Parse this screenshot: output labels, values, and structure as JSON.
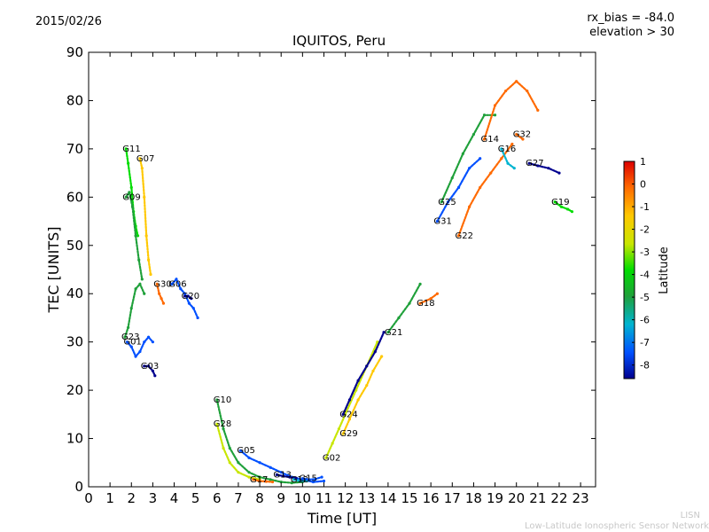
{
  "header": {
    "date": "2015/02/26",
    "rx_bias": "rx_bias = -84.0",
    "elevation": "elevation > 30",
    "title": "IQUITOS, Peru"
  },
  "footer": {
    "org_short": "LISN",
    "org_full": "Low-Latitude Ionospheric Sensor Network"
  },
  "colors": {
    "scale": [
      "#00008f",
      "#0050ff",
      "#00b4d0",
      "#1fa03a",
      "#00dd00",
      "#c8e600",
      "#ffc800",
      "#ff6a00",
      "#dd0000"
    ]
  },
  "chart_data": {
    "type": "scatter",
    "xlabel": "Time [UT]",
    "ylabel": "TEC [UNITS]",
    "xlim": [
      0,
      23.7
    ],
    "ylim": [
      0,
      90
    ],
    "xticks": [
      0,
      1,
      2,
      3,
      4,
      5,
      6,
      7,
      8,
      9,
      10,
      11,
      12,
      13,
      14,
      15,
      16,
      17,
      18,
      19,
      20,
      21,
      22,
      23
    ],
    "yticks": [
      0,
      10,
      20,
      30,
      40,
      50,
      60,
      70,
      80,
      90
    ],
    "colorbar": {
      "label": "Latitude",
      "range": [
        -8.6,
        1
      ],
      "ticks": [
        1,
        0,
        -1,
        -2,
        -3,
        -4,
        -5,
        -6,
        -7,
        -8
      ]
    },
    "series": [
      {
        "name": "G11",
        "lat": -3.5,
        "x": [
          1.75,
          1.85,
          2.0,
          2.1,
          2.2,
          2.3
        ],
        "y": [
          70,
          67,
          62,
          57,
          54,
          52
        ]
      },
      {
        "name": "G07",
        "lat": -1.5,
        "x": [
          2.4,
          2.5,
          2.6,
          2.7,
          2.8,
          2.9
        ],
        "y": [
          68,
          66,
          60,
          52,
          47,
          44
        ]
      },
      {
        "name": "G09",
        "lat": -4.5,
        "x": [
          1.75,
          1.9,
          2.05,
          2.2,
          2.35,
          2.5
        ],
        "y": [
          60,
          61,
          58,
          52,
          47,
          43
        ]
      },
      {
        "name": "G30",
        "lat": 0.3,
        "x": [
          3.2,
          3.3,
          3.4,
          3.5
        ],
        "y": [
          42,
          40,
          39,
          38
        ]
      },
      {
        "name": "G06",
        "lat": -7.0,
        "x": [
          3.9,
          4.1,
          4.3,
          4.5,
          4.7,
          4.9,
          5.1
        ],
        "y": [
          42,
          43,
          41,
          40,
          38,
          37,
          35
        ]
      },
      {
        "name": "G20",
        "lat": -8.3,
        "x": [
          4.5,
          4.65,
          4.8
        ],
        "y": [
          39.5,
          39.5,
          39
        ]
      },
      {
        "name": "G23",
        "lat": -5.5,
        "x": [
          1.7,
          1.85,
          2.0,
          2.2,
          2.4,
          2.6
        ],
        "y": [
          31,
          33,
          37,
          41,
          42,
          40
        ]
      },
      {
        "name": "G01",
        "lat": -7.5,
        "x": [
          1.8,
          2.0,
          2.2,
          2.4,
          2.6,
          2.8,
          3.0
        ],
        "y": [
          30,
          29,
          27,
          28,
          30,
          31,
          30
        ]
      },
      {
        "name": "G03",
        "lat": -8.4,
        "x": [
          2.6,
          2.8,
          3.0,
          3.1
        ],
        "y": [
          25,
          25,
          24,
          23
        ]
      },
      {
        "name": "G10",
        "lat": -5.0,
        "x": [
          6.0,
          6.3,
          6.6,
          7.0,
          7.5,
          8.0,
          8.5,
          9.0,
          9.5,
          10.0
        ],
        "y": [
          18,
          12,
          8,
          5,
          3,
          2,
          1.5,
          1,
          0.8,
          1
        ]
      },
      {
        "name": "G28",
        "lat": -2.5,
        "x": [
          6.0,
          6.3,
          6.6,
          7.0,
          7.5,
          8.0
        ],
        "y": [
          13,
          8,
          5,
          3,
          2,
          1.5
        ]
      },
      {
        "name": "G05",
        "lat": -7.0,
        "x": [
          7.1,
          7.5,
          8.0,
          8.5,
          9.0,
          9.5,
          10.0,
          10.5,
          11.0
        ],
        "y": [
          7.5,
          6,
          5,
          4,
          3,
          2,
          1.5,
          1,
          1.2
        ]
      },
      {
        "name": "G17",
        "lat": 0.2,
        "x": [
          7.7,
          8.0,
          8.3,
          8.6
        ],
        "y": [
          1.5,
          1.2,
          1.1,
          1.0
        ]
      },
      {
        "name": "G13",
        "lat": -8.2,
        "x": [
          8.8,
          9.1,
          9.4,
          9.7
        ],
        "y": [
          2.5,
          2.2,
          2,
          1.8
        ]
      },
      {
        "name": "G12",
        "lat": -6.0,
        "x": [
          9.6,
          9.9,
          10.2
        ],
        "y": [
          1.5,
          1.2,
          1.2
        ]
      },
      {
        "name": "G15",
        "lat": -7.0,
        "x": [
          10.0,
          10.3,
          10.6,
          10.9
        ],
        "y": [
          1.7,
          1.5,
          1.6,
          2
        ]
      },
      {
        "name": "G02",
        "lat": -3.0,
        "x": [
          11.1,
          11.4,
          11.7,
          12.0,
          12.5,
          13.0,
          13.5
        ],
        "y": [
          6,
          9,
          12,
          15,
          20,
          25,
          30
        ]
      },
      {
        "name": "G24",
        "lat": -8.0,
        "x": [
          11.9,
          12.2,
          12.6,
          13.0,
          13.4,
          13.8
        ],
        "y": [
          15,
          18,
          22,
          25,
          28,
          32
        ]
      },
      {
        "name": "G29",
        "lat": -1.0,
        "x": [
          11.9,
          12.2,
          12.6,
          13.0,
          13.3,
          13.7
        ],
        "y": [
          11,
          14,
          18,
          21,
          24,
          27
        ]
      },
      {
        "name": "G21",
        "lat": -5.5,
        "x": [
          14.0,
          14.5,
          15.0,
          15.5
        ],
        "y": [
          32,
          35,
          38,
          42
        ]
      },
      {
        "name": "G18",
        "lat": 0.3,
        "x": [
          15.5,
          16.0,
          16.3
        ],
        "y": [
          38,
          39,
          40
        ]
      },
      {
        "name": "G31",
        "lat": -7.5,
        "x": [
          16.3,
          16.8,
          17.3,
          17.8,
          18.3
        ],
        "y": [
          55,
          59,
          62,
          66,
          68
        ]
      },
      {
        "name": "G25",
        "lat": -4.5,
        "x": [
          16.5,
          17.0,
          17.5,
          18.0,
          18.5,
          19.0
        ],
        "y": [
          59,
          64,
          69,
          73,
          77,
          77
        ]
      },
      {
        "name": "G22",
        "lat": -0.5,
        "x": [
          17.3,
          17.8,
          18.3,
          18.8,
          19.3,
          19.8
        ],
        "y": [
          52,
          58,
          62,
          65,
          68,
          71
        ]
      },
      {
        "name": "G16",
        "lat": -6.5,
        "x": [
          19.3,
          19.6,
          19.9
        ],
        "y": [
          70,
          67,
          66
        ]
      },
      {
        "name": "G14",
        "lat": 0.2,
        "x": [
          18.5,
          19.0,
          19.5,
          20.0,
          20.5,
          21.0
        ],
        "y": [
          72,
          79,
          82,
          84,
          82,
          78
        ]
      },
      {
        "name": "G32",
        "lat": 0.3,
        "x": [
          20.0,
          20.3
        ],
        "y": [
          73,
          72
        ]
      },
      {
        "name": "G27",
        "lat": -8.2,
        "x": [
          20.6,
          21.0,
          21.5,
          22.0
        ],
        "y": [
          67,
          66.5,
          66,
          65
        ]
      },
      {
        "name": "G19",
        "lat": -4.0,
        "x": [
          21.8,
          22.1,
          22.4,
          22.6
        ],
        "y": [
          59,
          58,
          57.5,
          57
        ]
      }
    ]
  }
}
